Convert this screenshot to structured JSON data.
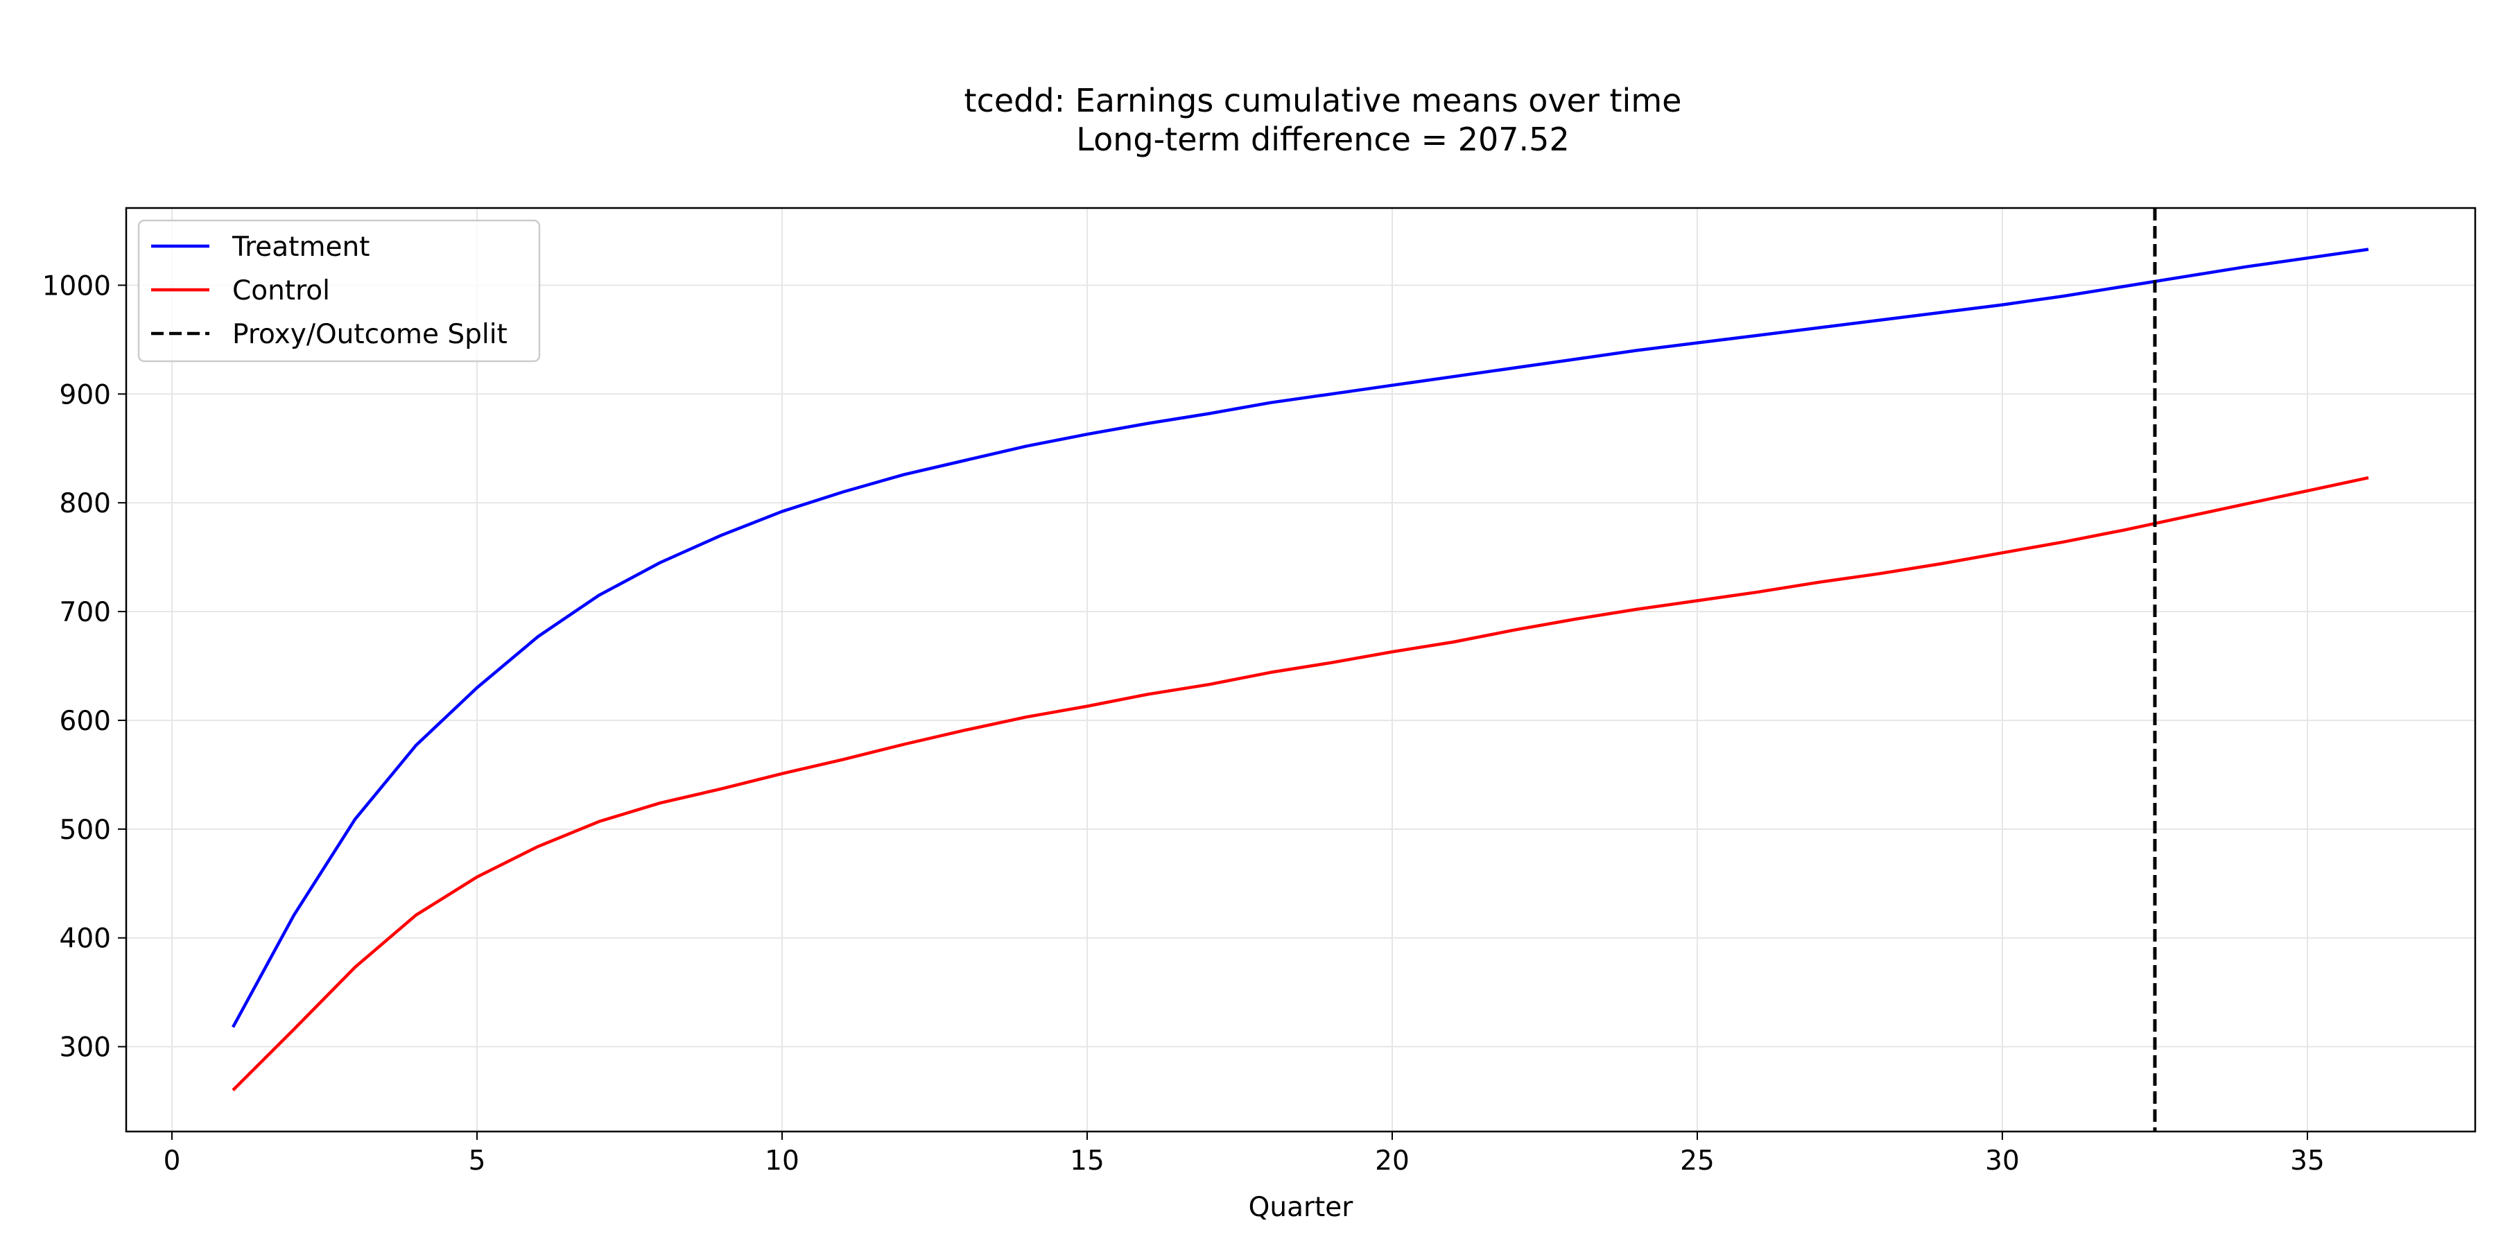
{
  "chart_data": {
    "type": "line",
    "title": "tcedd: Earnings cumulative means over time",
    "subtitle": "Long-term difference = 207.52",
    "xlabel": "Quarter",
    "ylabel": "",
    "xlim": [
      -0.75,
      37.75
    ],
    "ylim": [
      222,
      1071
    ],
    "xticks": [
      0,
      5,
      10,
      15,
      20,
      25,
      30,
      35
    ],
    "yticks": [
      300,
      400,
      500,
      600,
      700,
      800,
      900,
      1000
    ],
    "grid": true,
    "legend_position": "upper-left",
    "x": [
      1,
      2,
      3,
      4,
      5,
      6,
      7,
      8,
      9,
      10,
      11,
      12,
      13,
      14,
      15,
      16,
      17,
      18,
      19,
      20,
      21,
      22,
      23,
      24,
      25,
      26,
      27,
      28,
      29,
      30,
      31,
      32,
      33,
      34,
      35,
      36
    ],
    "series": [
      {
        "name": "Treatment",
        "color": "#0000ff",
        "style": "solid",
        "values": [
          318,
          421,
          509,
          577,
          630,
          677,
          715,
          745,
          770,
          792,
          810,
          826,
          839,
          852,
          863,
          873,
          882,
          892,
          900,
          908,
          916,
          924,
          932,
          940,
          947,
          954,
          961,
          968,
          975,
          982,
          990,
          999,
          1008,
          1017,
          1025,
          1033
        ]
      },
      {
        "name": "Control",
        "color": "#ff0000",
        "style": "solid",
        "values": [
          260,
          316,
          373,
          421,
          456,
          484,
          507,
          524,
          537,
          551,
          564,
          578,
          591,
          603,
          613,
          624,
          633,
          644,
          653,
          663,
          672,
          683,
          693,
          702,
          710,
          718,
          727,
          735,
          744,
          754,
          764,
          775,
          787,
          799,
          811,
          823
        ]
      }
    ],
    "vlines": [
      {
        "name": "Proxy/Outcome Split",
        "x": 32.5,
        "color": "#000000",
        "style": "dashed"
      }
    ]
  }
}
